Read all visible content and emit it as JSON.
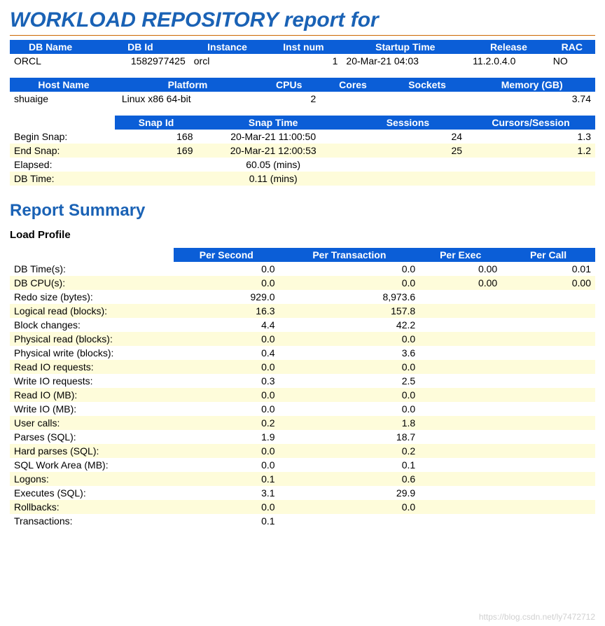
{
  "title": "WORKLOAD REPOSITORY report for",
  "summary_title": "Report Summary",
  "load_profile_title": "Load Profile",
  "watermark": "https://blog.csdn.net/ly7472712",
  "colors": {
    "header_bg": "#0b5ed7",
    "header_fg": "#ffffff",
    "row_odd_bg": "#fefcda",
    "row_even_bg": "#ffffff",
    "title_color": "#1a62b5",
    "title_underline": "#cc6600"
  },
  "db_table": {
    "headers": [
      "DB Name",
      "DB Id",
      "Instance",
      "Inst num",
      "Startup Time",
      "Release",
      "RAC"
    ],
    "rows": [
      [
        "ORCL",
        "1582977425",
        "orcl",
        "1",
        "20-Mar-21 04:03",
        "11.2.0.4.0",
        "NO"
      ]
    ],
    "align": [
      "lab",
      "num",
      "lab",
      "num",
      "lab",
      "lab",
      "lab"
    ]
  },
  "host_table": {
    "headers": [
      "Host Name",
      "Platform",
      "CPUs",
      "Cores",
      "Sockets",
      "Memory (GB)"
    ],
    "rows": [
      [
        "shuaige",
        "Linux x86 64-bit",
        "2",
        "",
        "",
        "3.74"
      ]
    ],
    "align": [
      "lab",
      "lab",
      "num",
      "num",
      "num",
      "num"
    ]
  },
  "snap_table": {
    "headers": [
      "",
      "Snap Id",
      "Snap Time",
      "Sessions",
      "Cursors/Session"
    ],
    "rows": [
      [
        "Begin Snap:",
        "168",
        "20-Mar-21 11:00:50",
        "24",
        "1.3"
      ],
      [
        "End Snap:",
        "169",
        "20-Mar-21 12:00:53",
        "25",
        "1.2"
      ],
      [
        "Elapsed:",
        "",
        "60.05 (mins)",
        "",
        ""
      ],
      [
        "DB Time:",
        "",
        "0.11 (mins)",
        "",
        ""
      ]
    ],
    "align": [
      "lab",
      "num",
      "ctr",
      "num",
      "num"
    ]
  },
  "load_profile": {
    "headers": [
      "",
      "Per Second",
      "Per Transaction",
      "Per Exec",
      "Per Call"
    ],
    "rows": [
      [
        "DB Time(s):",
        "0.0",
        "0.0",
        "0.00",
        "0.01"
      ],
      [
        "DB CPU(s):",
        "0.0",
        "0.0",
        "0.00",
        "0.00"
      ],
      [
        "Redo size (bytes):",
        "929.0",
        "8,973.6",
        "",
        ""
      ],
      [
        "Logical read (blocks):",
        "16.3",
        "157.8",
        "",
        ""
      ],
      [
        "Block changes:",
        "4.4",
        "42.2",
        "",
        ""
      ],
      [
        "Physical read (blocks):",
        "0.0",
        "0.0",
        "",
        ""
      ],
      [
        "Physical write (blocks):",
        "0.4",
        "3.6",
        "",
        ""
      ],
      [
        "Read IO requests:",
        "0.0",
        "0.0",
        "",
        ""
      ],
      [
        "Write IO requests:",
        "0.3",
        "2.5",
        "",
        ""
      ],
      [
        "Read IO (MB):",
        "0.0",
        "0.0",
        "",
        ""
      ],
      [
        "Write IO (MB):",
        "0.0",
        "0.0",
        "",
        ""
      ],
      [
        "User calls:",
        "0.2",
        "1.8",
        "",
        ""
      ],
      [
        "Parses (SQL):",
        "1.9",
        "18.7",
        "",
        ""
      ],
      [
        "Hard parses (SQL):",
        "0.0",
        "0.2",
        "",
        ""
      ],
      [
        "SQL Work Area (MB):",
        "0.0",
        "0.1",
        "",
        ""
      ],
      [
        "Logons:",
        "0.1",
        "0.6",
        "",
        ""
      ],
      [
        "Executes (SQL):",
        "3.1",
        "29.9",
        "",
        ""
      ],
      [
        "Rollbacks:",
        "0.0",
        "0.0",
        "",
        ""
      ],
      [
        "Transactions:",
        "0.1",
        "",
        "",
        ""
      ]
    ],
    "col_widths": [
      "28%",
      "18%",
      "24%",
      "14%",
      "16%"
    ]
  }
}
